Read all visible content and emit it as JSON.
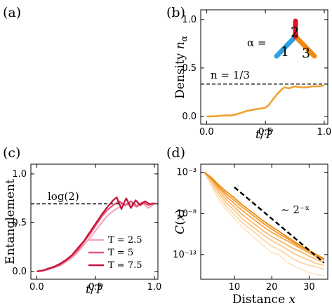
{
  "panels": {
    "a": {
      "label": "(a)"
    },
    "b": {
      "label": "(b)"
    },
    "c": {
      "label": "(c)"
    },
    "d": {
      "label": "(d)"
    }
  },
  "chart_data": [
    {
      "id": "b",
      "type": "line",
      "xlabel": "t/T",
      "ylabel": "Density n_α",
      "xlim": [
        -0.05,
        1.03
      ],
      "ylim": [
        -0.08,
        1.1
      ],
      "xticks": [
        "0.0",
        "0.5",
        "1.0"
      ],
      "yticks": [
        "0.0",
        "0.5",
        "1.0"
      ],
      "reference_line": {
        "y": 0.3333,
        "label": "n = 1/3"
      },
      "inset": {
        "label": "α =",
        "leg_labels": [
          "1",
          "2",
          "3"
        ],
        "leg_colors": [
          "#2fa0df",
          "#e01020",
          "#f08a10"
        ]
      },
      "series": [
        {
          "color": "#f0a030",
          "x": [
            0,
            0.05,
            0.1,
            0.15,
            0.2,
            0.25,
            0.3,
            0.35,
            0.4,
            0.45,
            0.5,
            0.53,
            0.56,
            0.6,
            0.63,
            0.66,
            0.7,
            0.75,
            0.8,
            0.85,
            0.9,
            0.95,
            1.0
          ],
          "y": [
            0,
            0,
            0.005,
            0.01,
            0.01,
            0.02,
            0.04,
            0.06,
            0.07,
            0.08,
            0.09,
            0.12,
            0.17,
            0.23,
            0.27,
            0.3,
            0.29,
            0.31,
            0.3,
            0.3,
            0.31,
            0.31,
            0.32
          ]
        }
      ]
    },
    {
      "id": "c",
      "type": "line",
      "xlabel": "t/T",
      "ylabel": "Entanglement",
      "xlim": [
        -0.05,
        1.03
      ],
      "ylim": [
        -0.08,
        1.1
      ],
      "xticks": [
        "0.0",
        "0.5",
        "1.0"
      ],
      "yticks": [
        "0.0",
        "0.5",
        "1.0"
      ],
      "reference_line": {
        "y": 0.693,
        "label": "log(2)"
      },
      "legend_position": "lower-right",
      "series": [
        {
          "name": "T = 2.5",
          "color": "#f0a8b8",
          "x": [
            0,
            0.05,
            0.1,
            0.15,
            0.2,
            0.25,
            0.3,
            0.35,
            0.4,
            0.45,
            0.5,
            0.55,
            0.6,
            0.65,
            0.7,
            0.75,
            0.8,
            0.85,
            0.9,
            0.95,
            1.0
          ],
          "y": [
            0,
            0.005,
            0.02,
            0.04,
            0.06,
            0.1,
            0.14,
            0.2,
            0.27,
            0.34,
            0.42,
            0.5,
            0.57,
            0.62,
            0.66,
            0.68,
            0.69,
            0.66,
            0.7,
            0.65,
            0.69
          ]
        },
        {
          "name": "T = 5",
          "color": "#e05a78",
          "x": [
            0,
            0.05,
            0.1,
            0.15,
            0.2,
            0.25,
            0.3,
            0.35,
            0.4,
            0.45,
            0.5,
            0.55,
            0.6,
            0.65,
            0.7,
            0.75,
            0.8,
            0.85,
            0.9,
            0.95,
            1.0
          ],
          "y": [
            0,
            0.01,
            0.025,
            0.045,
            0.07,
            0.11,
            0.16,
            0.22,
            0.3,
            0.38,
            0.47,
            0.56,
            0.63,
            0.68,
            0.72,
            0.68,
            0.72,
            0.67,
            0.71,
            0.68,
            0.7
          ]
        },
        {
          "name": "T = 7.5",
          "color": "#c8103c",
          "x": [
            0,
            0.05,
            0.1,
            0.15,
            0.2,
            0.25,
            0.3,
            0.35,
            0.4,
            0.45,
            0.5,
            0.55,
            0.6,
            0.65,
            0.68,
            0.72,
            0.76,
            0.8,
            0.84,
            0.88,
            0.92,
            0.96,
            1.0
          ],
          "y": [
            0,
            0.01,
            0.03,
            0.05,
            0.08,
            0.12,
            0.17,
            0.24,
            0.31,
            0.4,
            0.49,
            0.58,
            0.66,
            0.73,
            0.76,
            0.64,
            0.75,
            0.65,
            0.73,
            0.68,
            0.72,
            0.69,
            0.7
          ]
        }
      ]
    },
    {
      "id": "d",
      "type": "line",
      "xlabel": "Distance x",
      "ylabel": "C(x)",
      "log_y": true,
      "xlim": [
        1,
        35
      ],
      "ylim_log10": [
        -16,
        -2
      ],
      "xticks": [
        "10",
        "20",
        "30"
      ],
      "yticks": [
        "10⁻³",
        "10⁻⁸",
        "10⁻¹³"
      ],
      "fit_line": {
        "label": "~ 2⁻ˣ",
        "x": [
          10,
          34
        ],
        "log10y": [
          -4.8,
          -14.0
        ]
      },
      "series": [
        {
          "color": "#fde6c4",
          "x": [
            2,
            4,
            6,
            8,
            10,
            12,
            14,
            16,
            18,
            20,
            22,
            24,
            26,
            28,
            30,
            32,
            34
          ],
          "log10y": [
            -3.0,
            -4.8,
            -6.5,
            -7.6,
            -8.6,
            -9.6,
            -10.4,
            -11.2,
            -12.0,
            -12.8,
            -13.0,
            -13.9,
            -14.4,
            -14.8,
            -15.2,
            -15.4,
            -15.6
          ]
        },
        {
          "color": "#fbd7a6",
          "x": [
            2,
            4,
            6,
            8,
            10,
            12,
            14,
            16,
            18,
            20,
            22,
            24,
            26,
            28,
            30,
            32,
            34
          ],
          "log10y": [
            -3.0,
            -4.5,
            -6.0,
            -7.2,
            -8.1,
            -9.1,
            -9.8,
            -10.5,
            -11.3,
            -12.0,
            -12.4,
            -13.0,
            -13.6,
            -14.0,
            -14.3,
            -14.5,
            -14.8
          ]
        },
        {
          "color": "#f9c888",
          "x": [
            2,
            4,
            6,
            8,
            10,
            12,
            14,
            16,
            18,
            20,
            22,
            24,
            26,
            28,
            30,
            32,
            34
          ],
          "log10y": [
            -3.0,
            -4.2,
            -5.6,
            -6.8,
            -7.6,
            -8.6,
            -9.3,
            -10.0,
            -10.7,
            -11.3,
            -11.8,
            -12.3,
            -12.9,
            -13.3,
            -13.7,
            -14.1,
            -14.3
          ]
        },
        {
          "color": "#f7b86a",
          "x": [
            2,
            4,
            6,
            8,
            10,
            12,
            14,
            16,
            18,
            20,
            22,
            24,
            26,
            28,
            30,
            32,
            34
          ],
          "log10y": [
            -3.0,
            -4.0,
            -5.3,
            -6.4,
            -7.2,
            -8.1,
            -8.8,
            -9.5,
            -10.2,
            -10.8,
            -11.3,
            -11.8,
            -12.3,
            -12.7,
            -13.2,
            -13.6,
            -14.0
          ]
        },
        {
          "color": "#f4a84c",
          "x": [
            2,
            4,
            6,
            8,
            10,
            12,
            14,
            16,
            18,
            20,
            22,
            24,
            26,
            28,
            30,
            32,
            34
          ],
          "log10y": [
            -3.0,
            -3.9,
            -5.0,
            -6.0,
            -6.8,
            -7.6,
            -8.3,
            -9.0,
            -9.7,
            -10.3,
            -10.8,
            -11.3,
            -11.8,
            -12.3,
            -12.8,
            -13.3,
            -13.7
          ]
        },
        {
          "color": "#f0992e",
          "x": [
            2,
            4,
            6,
            8,
            10,
            12,
            14,
            16,
            18,
            20,
            22,
            24,
            26,
            28,
            30,
            32,
            34
          ],
          "log10y": [
            -3.0,
            -3.8,
            -4.8,
            -5.7,
            -6.4,
            -7.2,
            -7.9,
            -8.6,
            -9.3,
            -9.9,
            -10.5,
            -11.0,
            -11.6,
            -12.1,
            -12.6,
            -13.1,
            -13.6
          ]
        },
        {
          "color": "#ec8a10",
          "x": [
            2,
            4,
            6,
            8,
            10,
            12,
            14,
            16,
            18,
            20,
            22,
            24,
            26,
            28,
            30,
            32,
            34
          ],
          "log10y": [
            -3.0,
            -3.7,
            -4.6,
            -5.4,
            -6.1,
            -6.9,
            -7.6,
            -8.3,
            -9.0,
            -9.6,
            -10.2,
            -10.8,
            -11.4,
            -12.0,
            -12.5,
            -13.0,
            -13.5
          ]
        }
      ]
    }
  ]
}
